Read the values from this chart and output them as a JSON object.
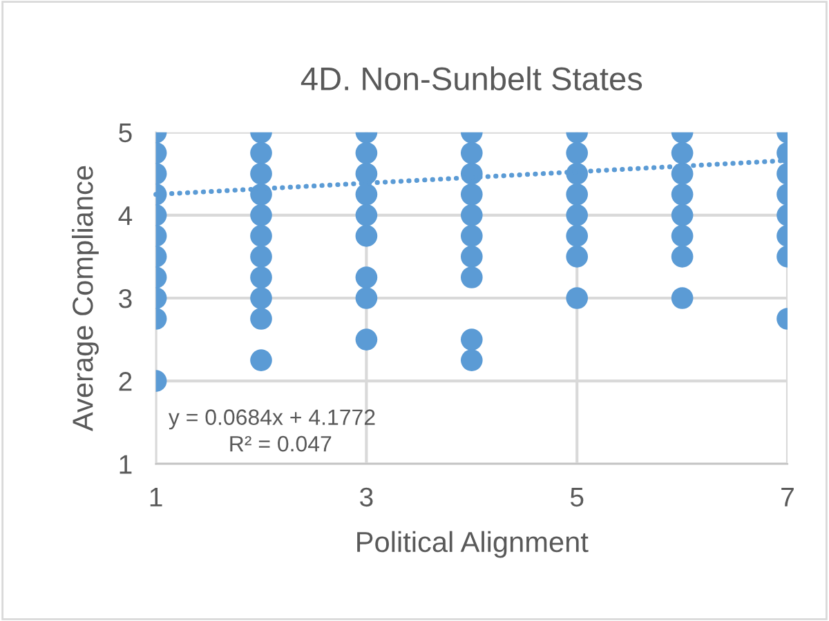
{
  "chart_data": {
    "type": "scatter",
    "title": "4D. Non-Sunbelt States",
    "xlabel": "Political Alignment",
    "ylabel": "Average Compliance",
    "series": [
      {
        "color": "#5b9bd5",
        "marker": "circle",
        "x": [
          1,
          1,
          1,
          1,
          1,
          1,
          1,
          1,
          1,
          1,
          1,
          2,
          2,
          2,
          2,
          2,
          2,
          2,
          2,
          2,
          2,
          2,
          3,
          3,
          3,
          3,
          3,
          3,
          3,
          3,
          3,
          4,
          4,
          4,
          4,
          4,
          4,
          4,
          4,
          4,
          4,
          5,
          5,
          5,
          5,
          5,
          5,
          5,
          5,
          6,
          6,
          6,
          6,
          6,
          6,
          6,
          6,
          7,
          7,
          7,
          7,
          7,
          7,
          7,
          7
        ],
        "values": [
          5,
          4.75,
          4.5,
          4.25,
          4,
          3.75,
          3.5,
          3.25,
          3,
          2.75,
          2,
          5,
          4.75,
          4.5,
          4.25,
          4,
          3.75,
          3.5,
          3.25,
          3,
          2.75,
          2.25,
          5,
          4.75,
          4.5,
          4.25,
          4,
          3.75,
          3.25,
          3,
          2.5,
          5,
          4.75,
          4.5,
          4.25,
          4,
          3.75,
          3.5,
          3.25,
          2.5,
          2.25,
          5,
          4.75,
          4.5,
          4.25,
          4,
          3.75,
          3.5,
          3,
          5,
          4.75,
          4.5,
          4.25,
          4,
          3.75,
          3.5,
          3,
          5,
          4.75,
          4.5,
          4.25,
          4,
          3.75,
          3.5,
          2.75
        ]
      },
      {
        "type": "line",
        "color": "#5b9bd5",
        "line_style": "dotted",
        "x": [
          1,
          7
        ],
        "values": [
          4.25,
          4.66
        ]
      }
    ],
    "annotations": [
      "y = 0.0684x + 4.1772",
      "R² = 0.047"
    ],
    "xlim": [
      1,
      7
    ],
    "xticks": [
      1,
      3,
      5,
      7
    ],
    "ylim": [
      1,
      5
    ],
    "yticks": [
      1,
      2,
      3,
      4,
      5
    ],
    "grid": true,
    "legend": false
  }
}
